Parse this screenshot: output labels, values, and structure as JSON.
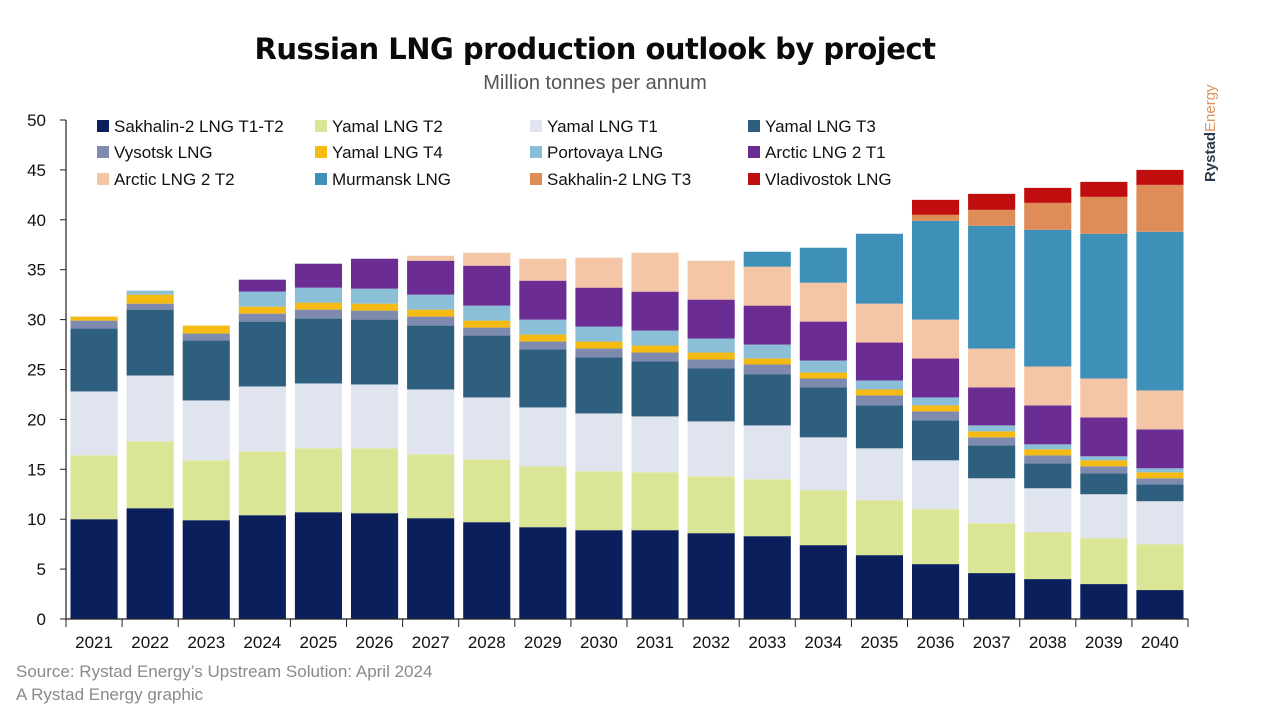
{
  "header": {
    "title": "Russian LNG production outlook by project",
    "subtitle": "Million tonnes per annum"
  },
  "brand": {
    "part1": "Rystad",
    "part2": "Energy"
  },
  "footer": {
    "source": "Source: Rystad Energy’s Upstream Solution: April 2024",
    "credit": "A Rystad Energy graphic"
  },
  "chart_data": {
    "type": "bar",
    "stacked": true,
    "title": "Russian LNG production outlook by project",
    "subtitle": "Million tonnes per annum",
    "xlabel": "",
    "ylabel": "",
    "ylim": [
      0,
      50
    ],
    "yticks": [
      0,
      5,
      10,
      15,
      20,
      25,
      30,
      35,
      40,
      45,
      50
    ],
    "grid": false,
    "legend_position": "top-left",
    "categories": [
      "2021",
      "2022",
      "2023",
      "2024",
      "2025",
      "2026",
      "2027",
      "2028",
      "2029",
      "2030",
      "2031",
      "2032",
      "2033",
      "2034",
      "2035",
      "2036",
      "2037",
      "2038",
      "2039",
      "2040"
    ],
    "series": [
      {
        "name": "Sakhalin-2 LNG T1-T2",
        "color": "#0b1f5c",
        "values": [
          10.0,
          11.1,
          9.9,
          10.4,
          10.7,
          10.6,
          10.1,
          9.7,
          9.2,
          8.9,
          8.9,
          8.6,
          8.3,
          7.4,
          6.4,
          5.5,
          4.6,
          4.0,
          3.5,
          2.9
        ]
      },
      {
        "name": "Yamal LNG T2",
        "color": "#dbe596",
        "values": [
          6.4,
          6.7,
          6.0,
          6.4,
          6.4,
          6.5,
          6.4,
          6.3,
          6.1,
          5.9,
          5.8,
          5.7,
          5.7,
          5.5,
          5.5,
          5.5,
          5.0,
          4.7,
          4.6,
          4.6
        ]
      },
      {
        "name": "Yamal LNG T1",
        "color": "#dfe4ee",
        "values": [
          6.4,
          6.6,
          6.0,
          6.5,
          6.5,
          6.4,
          6.5,
          6.2,
          5.9,
          5.8,
          5.6,
          5.5,
          5.4,
          5.3,
          5.2,
          4.9,
          4.5,
          4.4,
          4.4,
          4.3
        ]
      },
      {
        "name": "Yamal LNG T3",
        "color": "#2f5f7e",
        "values": [
          6.3,
          6.6,
          6.0,
          6.5,
          6.5,
          6.5,
          6.4,
          6.2,
          5.8,
          5.6,
          5.5,
          5.3,
          5.1,
          5.0,
          4.3,
          4.0,
          3.3,
          2.5,
          2.1,
          1.7
        ]
      },
      {
        "name": "Vysotsk LNG",
        "color": "#7f8bae",
        "values": [
          0.8,
          0.6,
          0.7,
          0.8,
          0.9,
          0.9,
          0.9,
          0.8,
          0.8,
          0.9,
          0.9,
          0.9,
          1.0,
          0.9,
          1.0,
          0.9,
          0.8,
          0.8,
          0.7,
          0.6
        ]
      },
      {
        "name": "Yamal LNG T4",
        "color": "#f5bb12",
        "values": [
          0.4,
          0.9,
          0.8,
          0.7,
          0.7,
          0.7,
          0.7,
          0.7,
          0.7,
          0.7,
          0.7,
          0.7,
          0.6,
          0.6,
          0.6,
          0.6,
          0.6,
          0.6,
          0.6,
          0.6
        ]
      },
      {
        "name": "Portovaya LNG",
        "color": "#8bbfd7",
        "values": [
          0,
          0.4,
          0,
          1.5,
          1.5,
          1.5,
          1.5,
          1.5,
          1.5,
          1.5,
          1.5,
          1.4,
          1.4,
          1.2,
          0.9,
          0.8,
          0.6,
          0.5,
          0.4,
          0.4
        ]
      },
      {
        "name": "Arctic LNG 2 T1",
        "color": "#6b2d93",
        "values": [
          0,
          0,
          0,
          1.2,
          2.4,
          3.0,
          3.4,
          4.0,
          3.9,
          3.9,
          3.9,
          3.9,
          3.9,
          3.9,
          3.8,
          3.9,
          3.8,
          3.9,
          3.9,
          3.9
        ]
      },
      {
        "name": "Arctic LNG 2 T2",
        "color": "#f4c6a6",
        "values": [
          0,
          0,
          0,
          0,
          0,
          0,
          0.5,
          1.3,
          2.2,
          3.0,
          3.9,
          3.9,
          3.9,
          3.9,
          3.9,
          3.9,
          3.9,
          3.9,
          3.9,
          3.9
        ]
      },
      {
        "name": "Murmansk LNG",
        "color": "#3e90b8",
        "values": [
          0,
          0,
          0,
          0,
          0,
          0,
          0,
          0,
          0,
          0,
          0,
          0,
          1.5,
          3.5,
          7.0,
          9.9,
          12.3,
          13.7,
          14.5,
          15.9
        ]
      },
      {
        "name": "Sakhalin-2 LNG T3",
        "color": "#de8d58",
        "values": [
          0,
          0,
          0,
          0,
          0,
          0,
          0,
          0,
          0,
          0,
          0,
          0,
          0,
          0,
          0,
          0.6,
          1.6,
          2.7,
          3.7,
          4.7
        ]
      },
      {
        "name": "Vladivostok LNG",
        "color": "#c00d0d",
        "values": [
          0,
          0,
          0,
          0,
          0,
          0,
          0,
          0,
          0,
          0,
          0,
          0,
          0,
          0,
          0,
          1.5,
          1.6,
          1.5,
          1.5,
          1.5
        ]
      }
    ]
  }
}
